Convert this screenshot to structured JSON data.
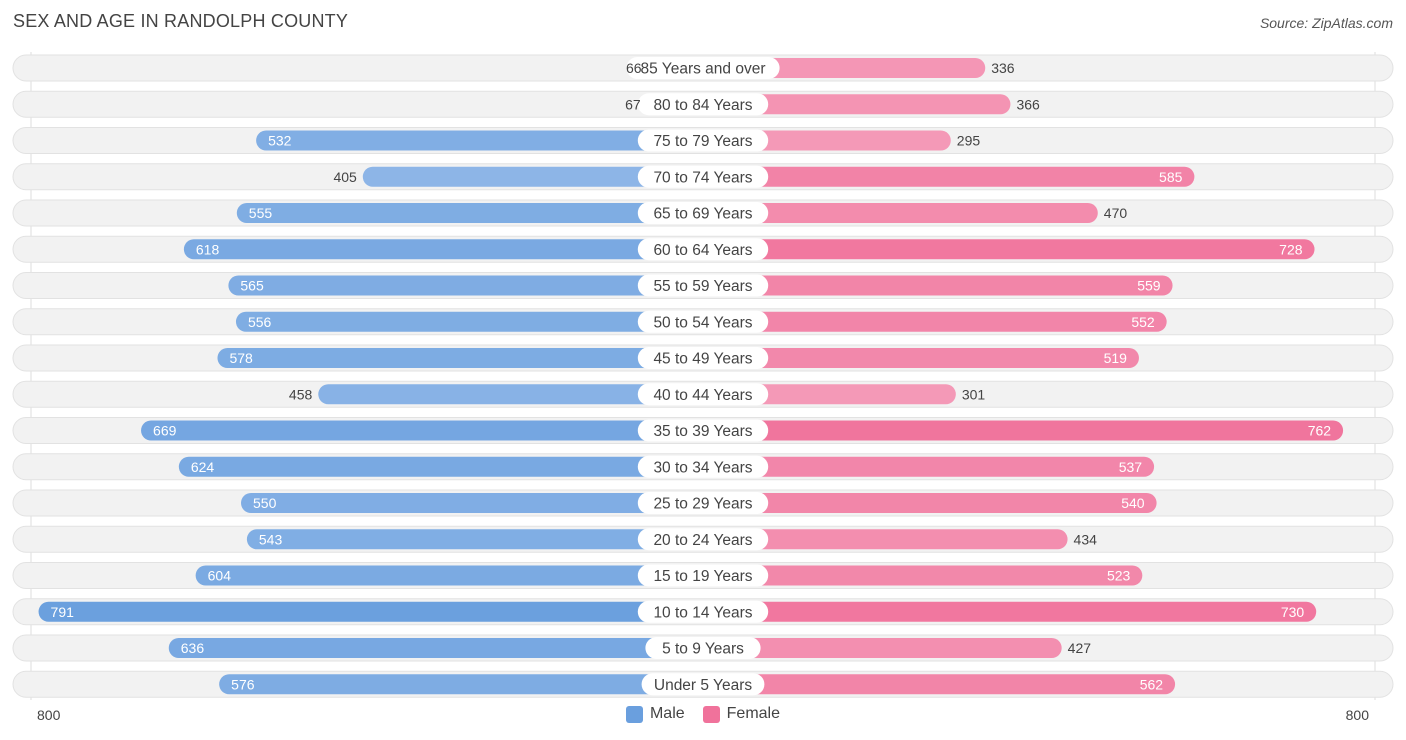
{
  "title": "SEX AND AGE IN RANDOLPH COUNTY",
  "source": "Source: ZipAtlas.com",
  "axis": {
    "left_label": "800",
    "right_label": "800"
  },
  "legend": {
    "male_label": "Male",
    "female_label": "Female"
  },
  "colors": {
    "male": "#6a9fde",
    "female": "#f0729b",
    "male_light": "#a9c8ee",
    "female_light": "#f6aac3",
    "row_background": "#f0f0f0"
  },
  "chart_data": {
    "type": "bar",
    "orientation": "horizontal-diverging",
    "categories": [
      "85 Years and over",
      "80 to 84 Years",
      "75 to 79 Years",
      "70 to 74 Years",
      "65 to 69 Years",
      "60 to 64 Years",
      "55 to 59 Years",
      "50 to 54 Years",
      "45 to 49 Years",
      "40 to 44 Years",
      "35 to 39 Years",
      "30 to 34 Years",
      "25 to 29 Years",
      "20 to 24 Years",
      "15 to 19 Years",
      "10 to 14 Years",
      "5 to 9 Years",
      "Under 5 Years"
    ],
    "series": [
      {
        "name": "Male",
        "values": [
          66,
          67,
          532,
          405,
          555,
          618,
          565,
          556,
          578,
          458,
          669,
          624,
          550,
          543,
          604,
          791,
          636,
          576
        ]
      },
      {
        "name": "Female",
        "values": [
          336,
          366,
          295,
          585,
          470,
          728,
          559,
          552,
          519,
          301,
          762,
          537,
          540,
          434,
          523,
          730,
          427,
          562
        ]
      }
    ],
    "xlim": [
      0,
      800
    ],
    "legend_position": "bottom-center"
  }
}
